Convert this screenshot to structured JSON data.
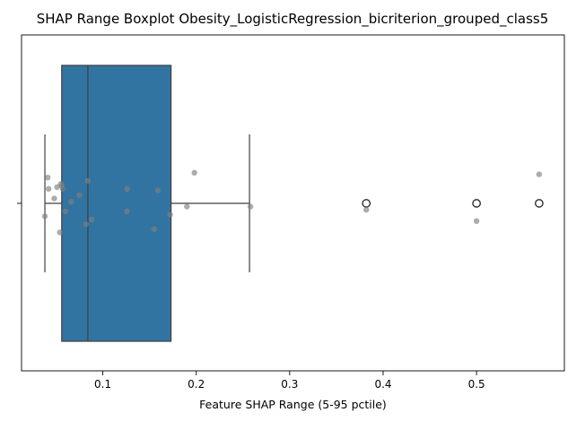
{
  "chart_data": {
    "type": "box",
    "title": "SHAP Range Boxplot Obesity_LogisticRegression_bicriterion_grouped_class5",
    "xlabel": "Feature SHAP Range (5-95 pctile)",
    "ylabel": "",
    "xlim": [
      0.013,
      0.594
    ],
    "x_ticks": [
      0.1,
      0.2,
      0.3,
      0.4,
      0.5
    ],
    "x_tick_labels": [
      "0.1",
      "0.2",
      "0.3",
      "0.4",
      "0.5"
    ],
    "grid": false,
    "box": {
      "whisker_low": 0.038,
      "q1": 0.056,
      "median": 0.084,
      "q3": 0.173,
      "whisker_high": 0.257,
      "outliers": [
        0.382,
        0.5,
        0.567
      ],
      "color": "#3274a1"
    },
    "strip_points": [
      {
        "x": 0.038,
        "y": -0.08
      },
      {
        "x": 0.041,
        "y": 0.16
      },
      {
        "x": 0.042,
        "y": 0.09
      },
      {
        "x": 0.048,
        "y": 0.03
      },
      {
        "x": 0.051,
        "y": 0.1
      },
      {
        "x": 0.054,
        "y": -0.18
      },
      {
        "x": 0.055,
        "y": 0.12
      },
      {
        "x": 0.056,
        "y": 0.11
      },
      {
        "x": 0.057,
        "y": 0.09
      },
      {
        "x": 0.06,
        "y": -0.05
      },
      {
        "x": 0.066,
        "y": 0.01
      },
      {
        "x": 0.075,
        "y": 0.05
      },
      {
        "x": 0.082,
        "y": -0.13
      },
      {
        "x": 0.084,
        "y": 0.14
      },
      {
        "x": 0.088,
        "y": -0.1
      },
      {
        "x": 0.126,
        "y": 0.09
      },
      {
        "x": 0.126,
        "y": -0.05
      },
      {
        "x": 0.155,
        "y": -0.16
      },
      {
        "x": 0.159,
        "y": 0.08
      },
      {
        "x": 0.172,
        "y": -0.07
      },
      {
        "x": 0.19,
        "y": -0.02
      },
      {
        "x": 0.198,
        "y": 0.19
      },
      {
        "x": 0.258,
        "y": -0.02
      },
      {
        "x": 0.382,
        "y": -0.04
      },
      {
        "x": 0.5,
        "y": -0.11
      },
      {
        "x": 0.567,
        "y": 0.18
      }
    ],
    "strip_color": "#808080"
  }
}
